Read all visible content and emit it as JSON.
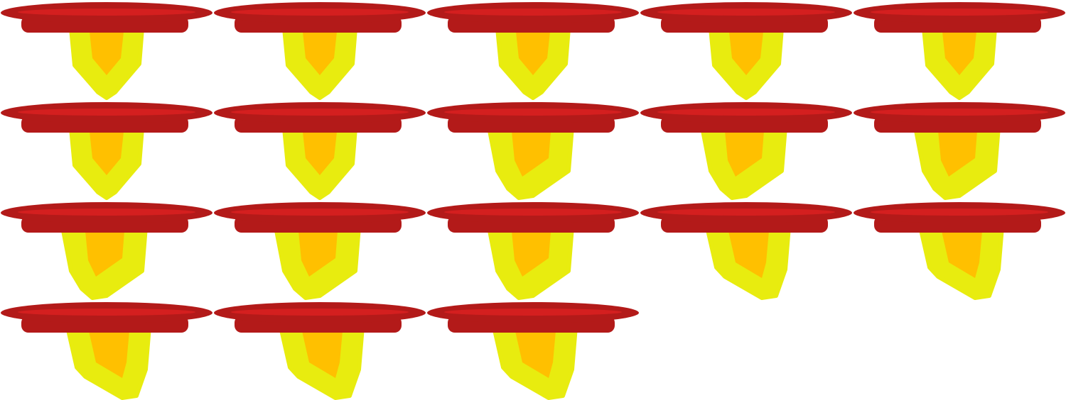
{
  "sprite_sheet": {
    "columns": 5,
    "rows": 4,
    "colors": {
      "brim_outer": "#b31a19",
      "brim_inner": "#d41f1f",
      "flame_outer": "#e8ec0f",
      "flame_inner": "#ffc000"
    },
    "frames": [
      {
        "id": 1,
        "flame_shape": "pointed-center"
      },
      {
        "id": 2,
        "flame_shape": "pointed-center"
      },
      {
        "id": 3,
        "flame_shape": "pointed-center"
      },
      {
        "id": 4,
        "flame_shape": "pointed-center"
      },
      {
        "id": 5,
        "flame_shape": "pointed-center"
      },
      {
        "id": 6,
        "flame_shape": "pointed-center"
      },
      {
        "id": 7,
        "flame_shape": "pointed-center"
      },
      {
        "id": 8,
        "flame_shape": "tilted-left"
      },
      {
        "id": 9,
        "flame_shape": "tilted-left"
      },
      {
        "id": 10,
        "flame_shape": "tilted-left"
      },
      {
        "id": 11,
        "flame_shape": "tilted-left"
      },
      {
        "id": 12,
        "flame_shape": "tilted-left"
      },
      {
        "id": 13,
        "flame_shape": "tilted-left"
      },
      {
        "id": 14,
        "flame_shape": "tilted-right"
      },
      {
        "id": 15,
        "flame_shape": "tilted-right"
      },
      {
        "id": 16,
        "flame_shape": "tilted-right"
      },
      {
        "id": 17,
        "flame_shape": "tilted-right"
      },
      {
        "id": 18,
        "flame_shape": "tilted-right"
      }
    ]
  }
}
